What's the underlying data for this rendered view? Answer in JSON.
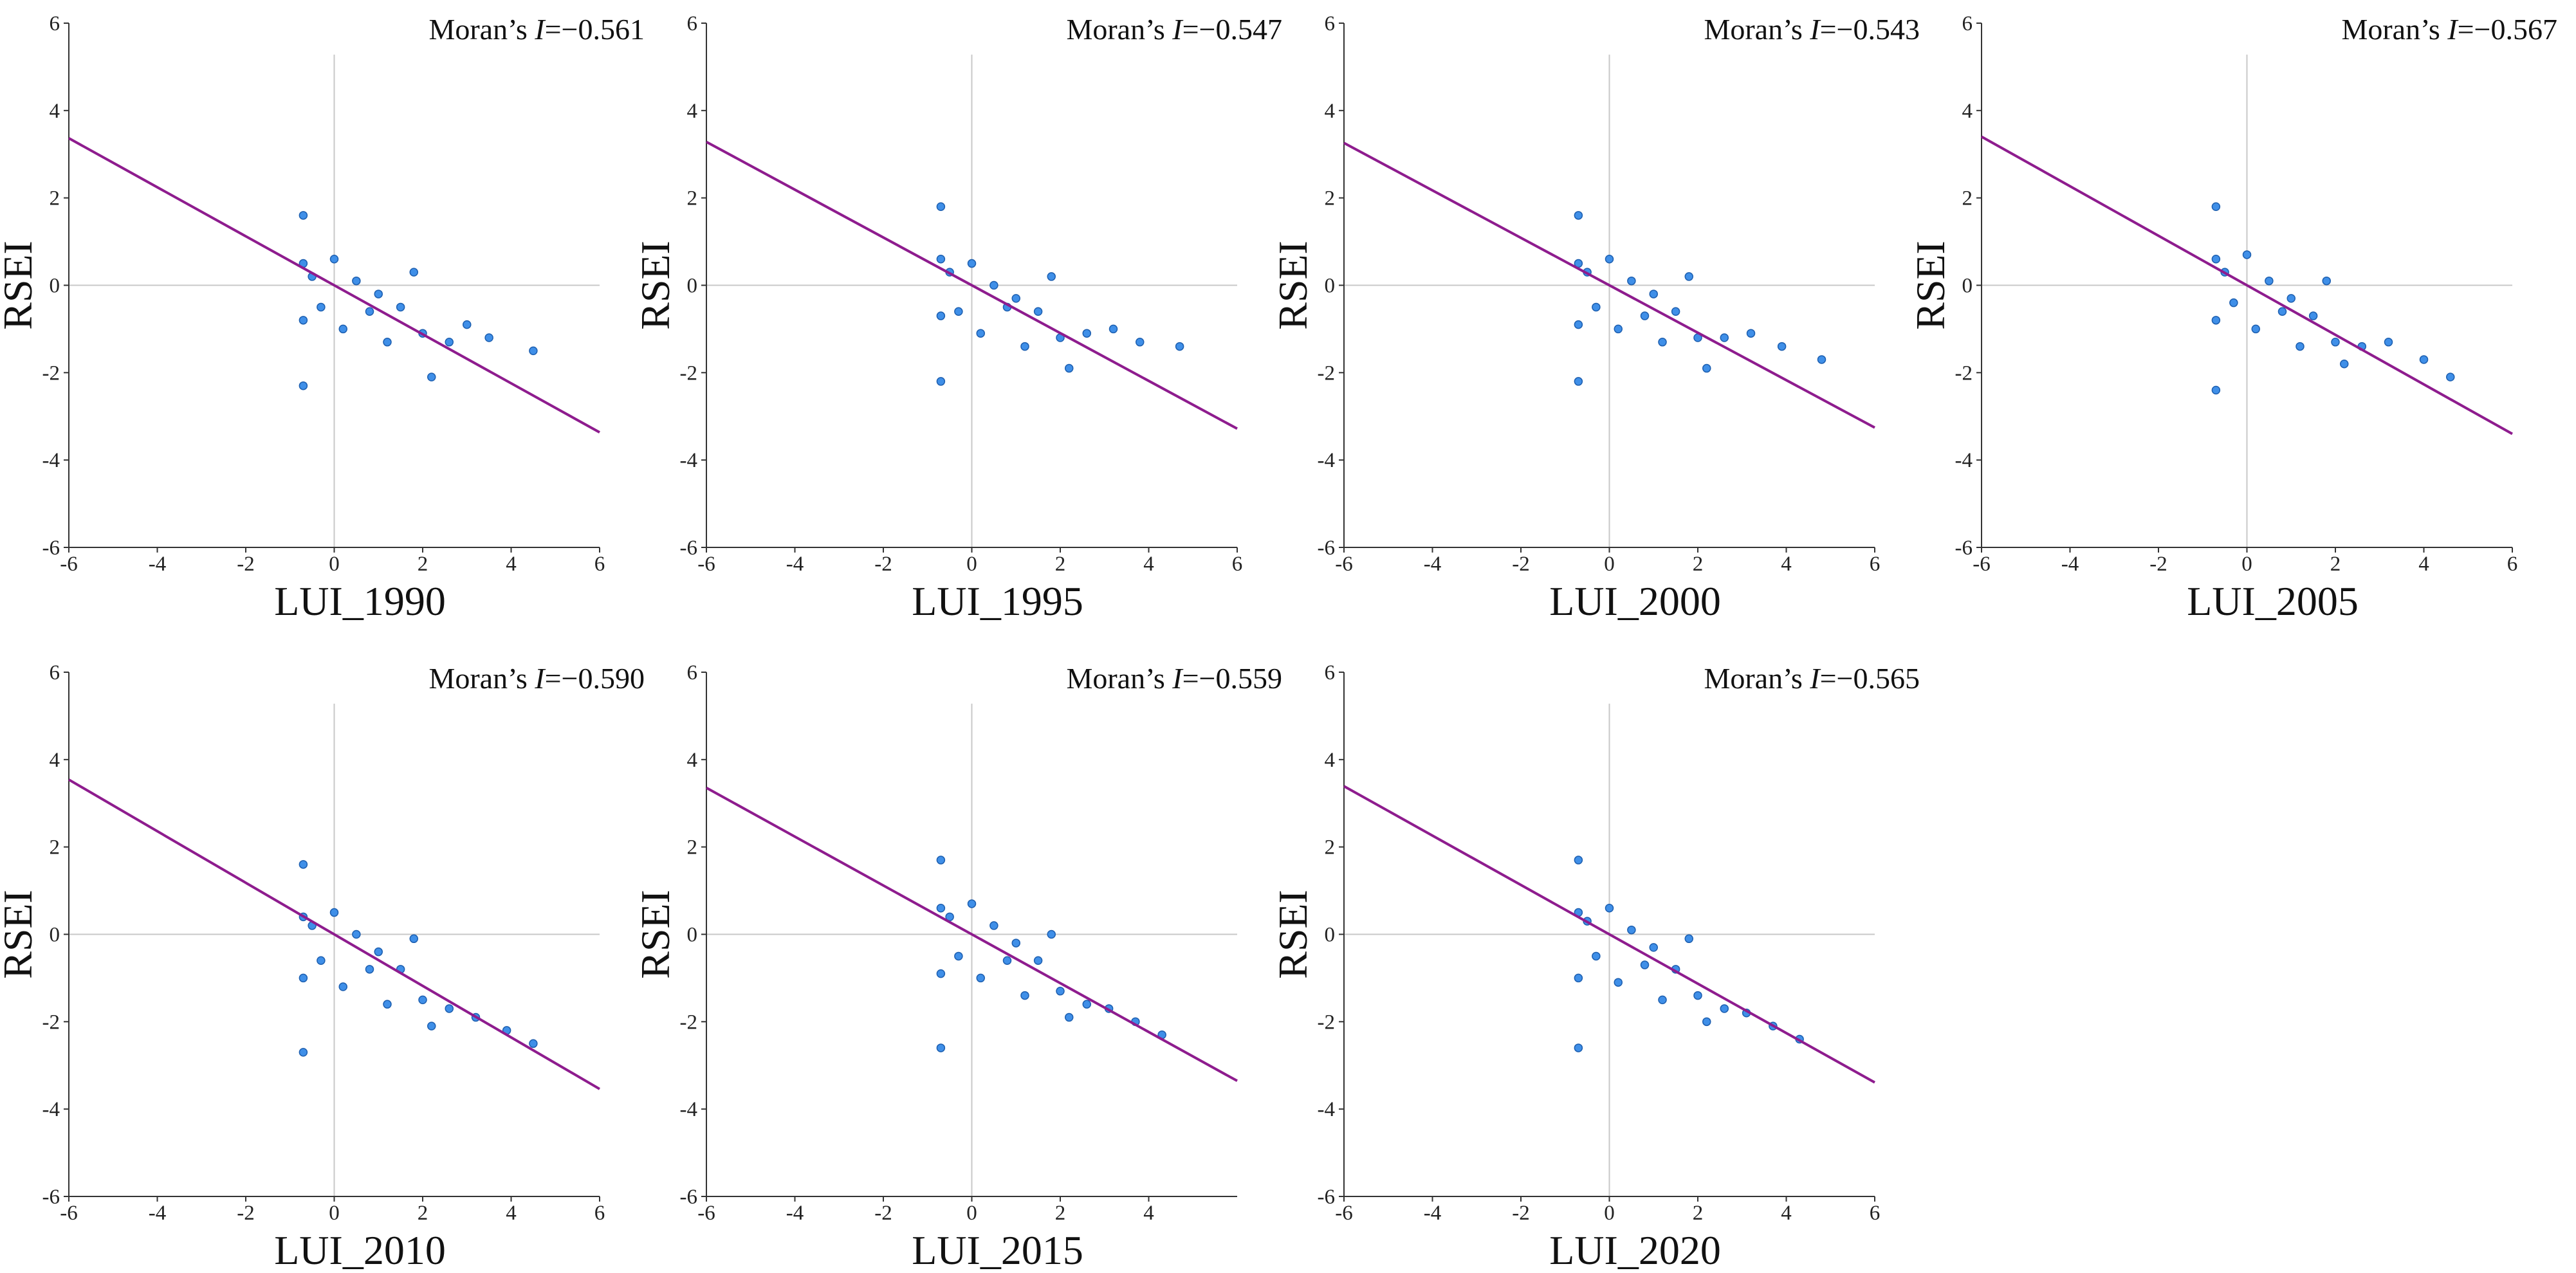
{
  "chart_data": [
    {
      "type": "scatter",
      "xlabel": "LUI_1990",
      "ylabel": "RSEI",
      "annotation": {
        "prefix": "Moran’s ",
        "symbol": "I",
        "value": -0.561,
        "label": "=−0.561"
      },
      "xlim": [
        -6,
        6
      ],
      "ylim": [
        -6,
        6
      ],
      "xticks": [
        -6,
        -4,
        -2,
        0,
        2,
        4,
        6
      ],
      "yticks": [
        -6,
        -4,
        -2,
        0,
        2,
        4,
        6
      ],
      "color": "#3f8fe8",
      "line_color": "#8e1c8e",
      "x": [
        -0.7,
        -0.7,
        -0.7,
        -0.7,
        -0.5,
        -0.3,
        0,
        0.2,
        0.5,
        0.8,
        1,
        1.2,
        1.5,
        1.8,
        2,
        2.2,
        2.6,
        3,
        3.5,
        4.5
      ],
      "y": [
        1.6,
        0.5,
        -0.8,
        -2.3,
        0.2,
        -0.5,
        0.6,
        -1,
        0.1,
        -0.6,
        -0.2,
        -1.3,
        -0.5,
        0.3,
        -1.1,
        -2.1,
        -1.3,
        -0.9,
        -1.2,
        -1.5
      ]
    },
    {
      "type": "scatter",
      "xlabel": "LUI_1995",
      "ylabel": "RSEI",
      "annotation": {
        "prefix": "Moran’s ",
        "symbol": "I",
        "value": -0.547,
        "label": "=−0.547"
      },
      "xlim": [
        -6,
        6
      ],
      "ylim": [
        -6,
        6
      ],
      "xticks": [
        -6,
        -4,
        -2,
        0,
        2,
        4,
        6
      ],
      "yticks": [
        -6,
        -4,
        -2,
        0,
        2,
        4,
        6
      ],
      "color": "#3f8fe8",
      "line_color": "#8e1c8e",
      "x": [
        -0.7,
        -0.7,
        -0.7,
        -0.7,
        -0.5,
        -0.3,
        0,
        0.2,
        0.5,
        0.8,
        1,
        1.2,
        1.5,
        1.8,
        2,
        2.2,
        2.6,
        3.2,
        3.8,
        4.7
      ],
      "y": [
        1.8,
        0.6,
        -0.7,
        -2.2,
        0.3,
        -0.6,
        0.5,
        -1.1,
        0,
        -0.5,
        -0.3,
        -1.4,
        -0.6,
        0.2,
        -1.2,
        -1.9,
        -1.1,
        -1,
        -1.3,
        -1.4
      ]
    },
    {
      "type": "scatter",
      "xlabel": "LUI_2000",
      "ylabel": "RSEI",
      "annotation": {
        "prefix": "Moran’s ",
        "symbol": "I",
        "value": -0.543,
        "label": "=−0.543"
      },
      "xlim": [
        -6,
        6
      ],
      "ylim": [
        -6,
        6
      ],
      "xticks": [
        -6,
        -4,
        -2,
        0,
        2,
        4,
        6
      ],
      "yticks": [
        -6,
        -4,
        -2,
        0,
        2,
        4,
        6
      ],
      "color": "#3f8fe8",
      "line_color": "#8e1c8e",
      "x": [
        -0.7,
        -0.7,
        -0.7,
        -0.7,
        -0.5,
        -0.3,
        0,
        0.2,
        0.5,
        0.8,
        1,
        1.2,
        1.5,
        1.8,
        2,
        2.2,
        2.6,
        3.2,
        3.9,
        4.8
      ],
      "y": [
        1.6,
        0.5,
        -0.9,
        -2.2,
        0.3,
        -0.5,
        0.6,
        -1,
        0.1,
        -0.7,
        -0.2,
        -1.3,
        -0.6,
        0.2,
        -1.2,
        -1.9,
        -1.2,
        -1.1,
        -1.4,
        -1.7
      ]
    },
    {
      "type": "scatter",
      "xlabel": "LUI_2005",
      "ylabel": "RSEI",
      "annotation": {
        "prefix": "Moran’s ",
        "symbol": "I",
        "value": -0.567,
        "label": "=−0.567"
      },
      "xlim": [
        -6,
        6
      ],
      "ylim": [
        -6,
        6
      ],
      "xticks": [
        -6,
        -4,
        -2,
        0,
        2,
        4,
        6
      ],
      "yticks": [
        -6,
        -4,
        -2,
        0,
        2,
        4,
        6
      ],
      "color": "#3f8fe8",
      "line_color": "#8e1c8e",
      "x": [
        -0.7,
        -0.7,
        -0.7,
        -0.7,
        -0.5,
        -0.3,
        0,
        0.2,
        0.5,
        0.8,
        1,
        1.2,
        1.5,
        1.8,
        2,
        2.2,
        2.6,
        3.2,
        4,
        4.6
      ],
      "y": [
        1.8,
        0.6,
        -0.8,
        -2.4,
        0.3,
        -0.4,
        0.7,
        -1,
        0.1,
        -0.6,
        -0.3,
        -1.4,
        -0.7,
        0.1,
        -1.3,
        -1.8,
        -1.4,
        -1.3,
        -1.7,
        -2.1
      ]
    },
    {
      "type": "scatter",
      "xlabel": "LUI_2010",
      "ylabel": "RSEI",
      "annotation": {
        "prefix": "Moran’s ",
        "symbol": "I",
        "value": -0.59,
        "label": "=−0.590"
      },
      "xlim": [
        -6,
        6
      ],
      "ylim": [
        -6,
        6
      ],
      "xticks": [
        -6,
        -4,
        -2,
        0,
        2,
        4,
        6
      ],
      "yticks": [
        -6,
        -4,
        -2,
        0,
        2,
        4,
        6
      ],
      "color": "#3f8fe8",
      "line_color": "#8e1c8e",
      "x": [
        -0.7,
        -0.7,
        -0.7,
        -0.7,
        -0.5,
        -0.3,
        0,
        0.2,
        0.5,
        0.8,
        1,
        1.2,
        1.5,
        1.8,
        2,
        2.2,
        2.6,
        3.2,
        3.9,
        4.5
      ],
      "y": [
        1.6,
        0.4,
        -1,
        -2.7,
        0.2,
        -0.6,
        0.5,
        -1.2,
        0,
        -0.8,
        -0.4,
        -1.6,
        -0.8,
        -0.1,
        -1.5,
        -2.1,
        -1.7,
        -1.9,
        -2.2,
        -2.5
      ]
    },
    {
      "type": "scatter",
      "xlabel": "LUI_2015",
      "ylabel": "RSEI",
      "annotation": {
        "prefix": "Moran’s ",
        "symbol": "I",
        "value": -0.559,
        "label": "=−0.559"
      },
      "xlim": [
        -6,
        6
      ],
      "ylim": [
        -6,
        6
      ],
      "xticks": [
        -6,
        -4,
        -2,
        0,
        2,
        4
      ],
      "yticks": [
        -6,
        -4,
        -2,
        0,
        2,
        4,
        6
      ],
      "color": "#3f8fe8",
      "line_color": "#8e1c8e",
      "x": [
        -0.7,
        -0.7,
        -0.7,
        -0.7,
        -0.5,
        -0.3,
        0,
        0.2,
        0.5,
        0.8,
        1,
        1.2,
        1.5,
        1.8,
        2,
        2.2,
        2.6,
        3.1,
        3.7,
        4.3
      ],
      "y": [
        1.7,
        0.6,
        -0.9,
        -2.6,
        0.4,
        -0.5,
        0.7,
        -1,
        0.2,
        -0.6,
        -0.2,
        -1.4,
        -0.6,
        0,
        -1.3,
        -1.9,
        -1.6,
        -1.7,
        -2,
        -2.3
      ]
    },
    {
      "type": "scatter",
      "xlabel": "LUI_2020",
      "ylabel": "RSEI",
      "annotation": {
        "prefix": "Moran’s ",
        "symbol": "I",
        "value": -0.565,
        "label": "=−0.565"
      },
      "xlim": [
        -6,
        6
      ],
      "ylim": [
        -6,
        6
      ],
      "xticks": [
        -6,
        -4,
        -2,
        0,
        2,
        4,
        6
      ],
      "yticks": [
        -6,
        -4,
        -2,
        0,
        2,
        4,
        6
      ],
      "color": "#3f8fe8",
      "line_color": "#8e1c8e",
      "x": [
        -0.7,
        -0.7,
        -0.7,
        -0.7,
        -0.5,
        -0.3,
        0,
        0.2,
        0.5,
        0.8,
        1,
        1.2,
        1.5,
        1.8,
        2,
        2.2,
        2.6,
        3.1,
        3.7,
        4.3
      ],
      "y": [
        1.7,
        0.5,
        -1,
        -2.6,
        0.3,
        -0.5,
        0.6,
        -1.1,
        0.1,
        -0.7,
        -0.3,
        -1.5,
        -0.8,
        -0.1,
        -1.4,
        -2,
        -1.7,
        -1.8,
        -2.1,
        -2.4
      ]
    }
  ]
}
